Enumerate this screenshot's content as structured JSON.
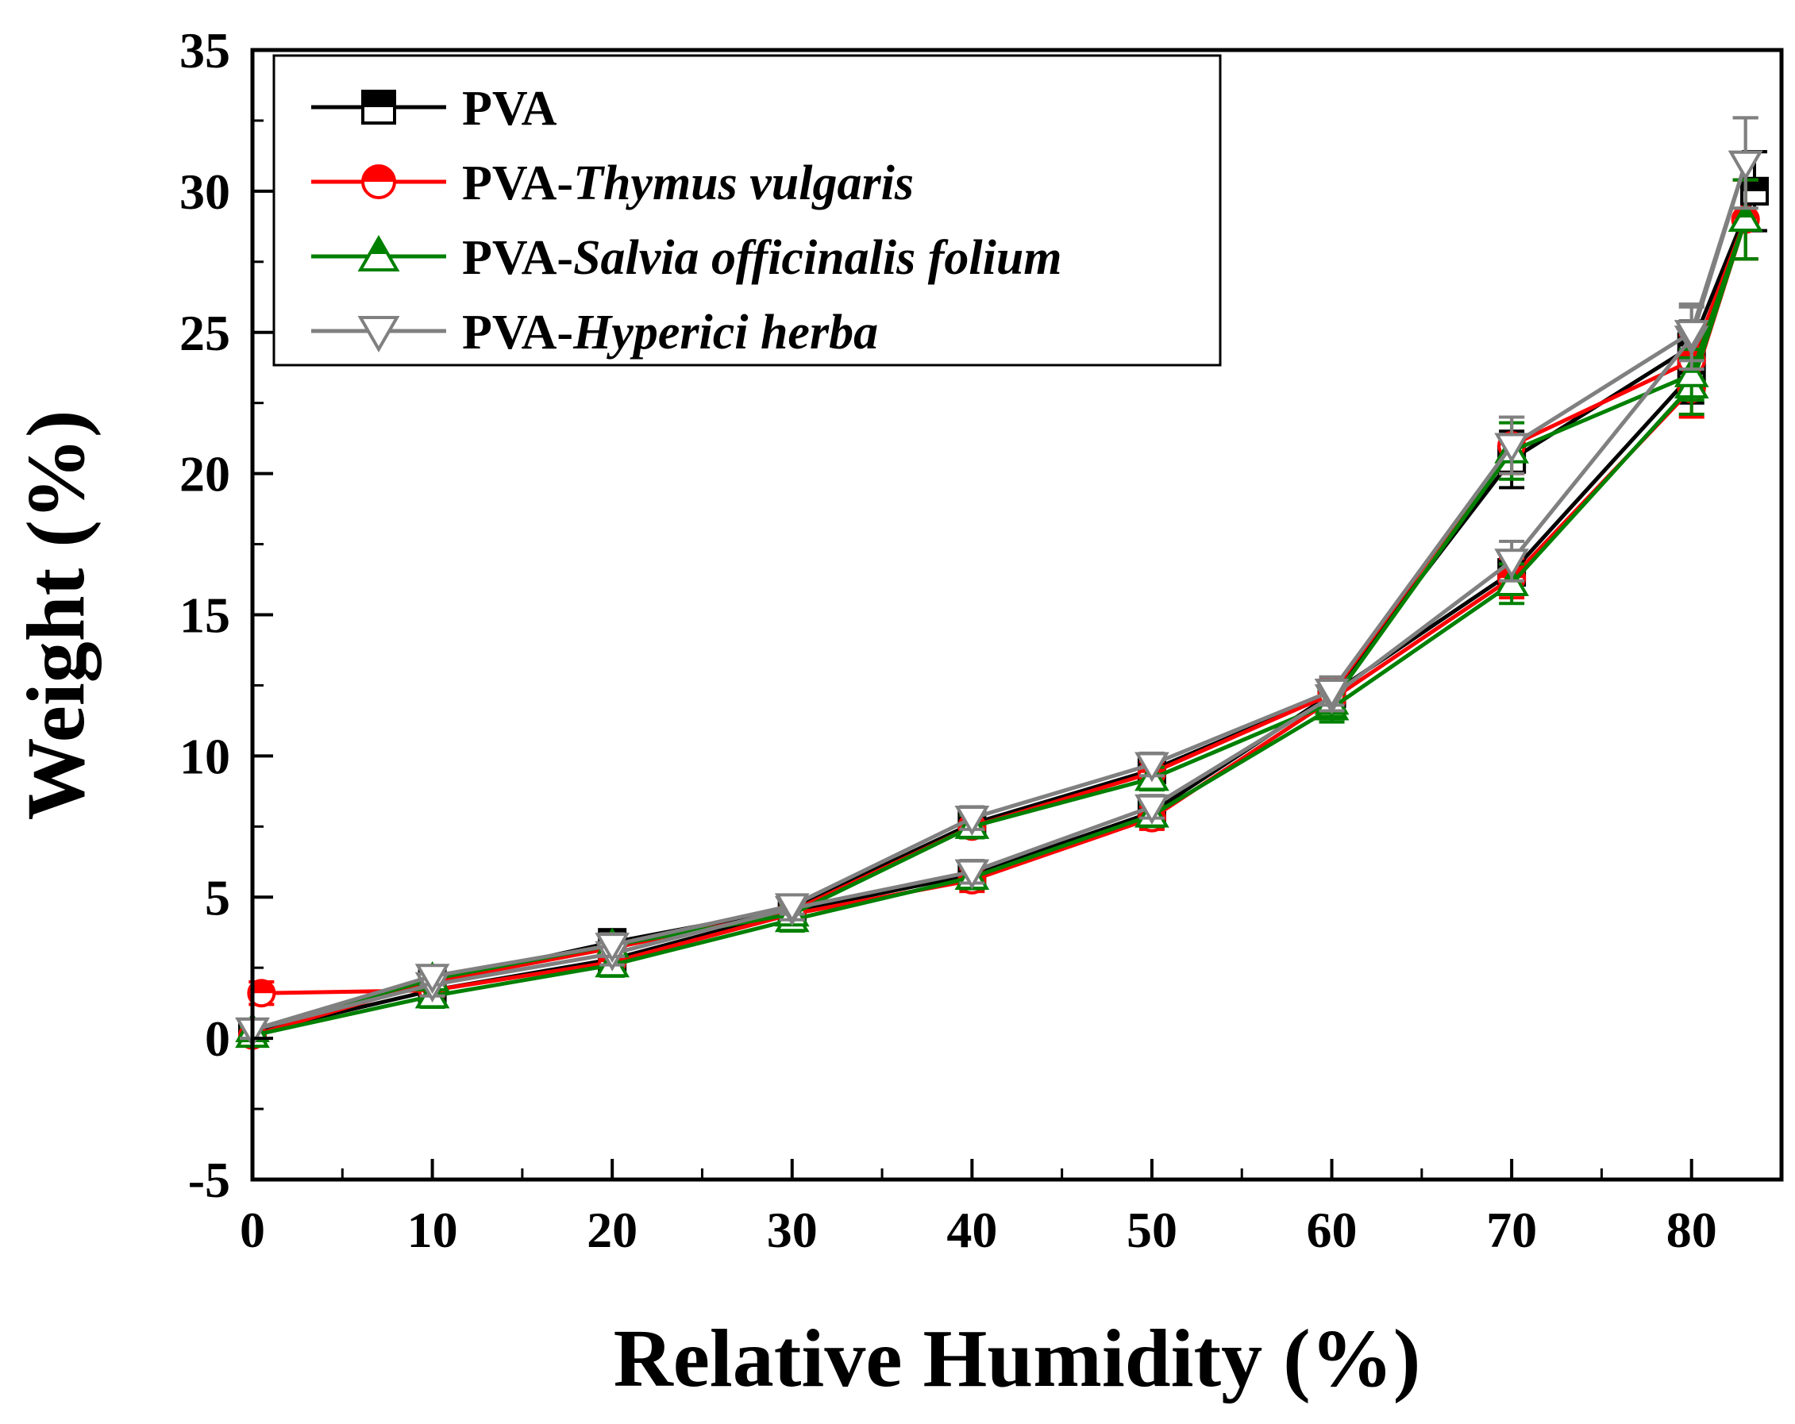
{
  "chart_data": {
    "type": "line",
    "title": "",
    "xlabel": "Relative Humidity (%)",
    "ylabel": "Weight (%)",
    "xlim": [
      0,
      85
    ],
    "ylim": [
      -5,
      35
    ],
    "xticks": [
      0,
      10,
      20,
      30,
      40,
      50,
      60,
      70,
      80
    ],
    "yticks": [
      -5,
      0,
      5,
      10,
      15,
      20,
      25,
      30,
      35
    ],
    "xtick_labels": [
      "0",
      "10",
      "20",
      "30",
      "40",
      "50",
      "60",
      "70",
      "80"
    ],
    "ytick_labels": [
      "-5",
      "0",
      "5",
      "10",
      "15",
      "20",
      "25",
      "30",
      "35"
    ],
    "grid": false,
    "legend_position": "top-left",
    "series": [
      {
        "name": "PVA",
        "name_plain": "PVA",
        "name_italic": "",
        "color": "#000000",
        "marker": "square",
        "adsorption": {
          "x": [
            0,
            10,
            20,
            30,
            40,
            50,
            60,
            70,
            80,
            83.5
          ],
          "y": [
            0.2,
            1.7,
            2.8,
            4.5,
            5.8,
            8.0,
            12.2,
            16.5,
            23.5,
            30.0
          ],
          "err": [
            0.3,
            0.4,
            0.4,
            0.4,
            0.4,
            0.4,
            0.5,
            0.7,
            1.0,
            1.4
          ]
        },
        "desorption": {
          "x": [
            83.5,
            80,
            70,
            60,
            50,
            40,
            30,
            20,
            10,
            0
          ],
          "y": [
            30.0,
            24.5,
            20.5,
            12.2,
            9.5,
            7.6,
            4.6,
            3.4,
            2.0,
            0.2
          ],
          "err": [
            1.4,
            0.9,
            1.0,
            0.5,
            0.4,
            0.4,
            0.3,
            0.4,
            0.3,
            0.3
          ]
        }
      },
      {
        "name": "PVA-Thymus vulgaris",
        "name_plain": "PVA-",
        "name_italic": "Thymus vulgaris",
        "color": "#ff0000",
        "marker": "circle",
        "adsorption": {
          "x": [
            0.5,
            10,
            20,
            30,
            40,
            50,
            60,
            70,
            80,
            83
          ],
          "y": [
            1.6,
            1.7,
            2.7,
            4.4,
            5.6,
            7.8,
            12.0,
            16.3,
            23.0,
            29.0
          ],
          "err": [
            0.4,
            0.4,
            0.4,
            0.4,
            0.4,
            0.4,
            0.5,
            0.7,
            1.0,
            1.4
          ]
        },
        "desorption": {
          "x": [
            83,
            80,
            70,
            60,
            50,
            40,
            30,
            20,
            10,
            0
          ],
          "y": [
            29.0,
            24.0,
            21.0,
            12.2,
            9.4,
            7.5,
            4.5,
            3.2,
            2.0,
            0.1
          ],
          "err": [
            1.4,
            0.9,
            1.0,
            0.5,
            0.4,
            0.4,
            0.3,
            0.4,
            0.3,
            0.3
          ]
        }
      },
      {
        "name": "PVA-Salvia officinalis folium",
        "name_plain": "PVA-",
        "name_italic": "Salvia officinalis folium",
        "color": "#008000",
        "marker": "triangle-up",
        "adsorption": {
          "x": [
            0,
            10,
            20,
            30,
            40,
            50,
            60,
            70,
            80,
            83
          ],
          "y": [
            0.1,
            1.5,
            2.6,
            4.2,
            5.7,
            7.9,
            11.7,
            16.1,
            23.1,
            29.0
          ],
          "err": [
            0.3,
            0.4,
            0.4,
            0.4,
            0.4,
            0.4,
            0.5,
            0.7,
            1.0,
            1.4
          ]
        },
        "desorption": {
          "x": [
            83,
            80,
            70,
            60,
            50,
            40,
            30,
            20,
            10,
            0
          ],
          "y": [
            29.0,
            23.5,
            20.8,
            11.9,
            9.2,
            7.5,
            4.4,
            3.3,
            2.1,
            0.3
          ],
          "err": [
            1.4,
            0.9,
            1.0,
            0.5,
            0.4,
            0.4,
            0.3,
            0.4,
            0.3,
            0.3
          ]
        }
      },
      {
        "name": "PVA-Hyperici herba",
        "name_plain": "PVA-",
        "name_italic": "Hyperici herba",
        "color": "#808080",
        "marker": "triangle-down",
        "adsorption": {
          "x": [
            0,
            10,
            20,
            30,
            40,
            50,
            60,
            70,
            80,
            83
          ],
          "y": [
            0.3,
            1.9,
            3.0,
            4.6,
            5.9,
            8.2,
            12.1,
            16.9,
            24.8,
            31.0
          ],
          "err": [
            0.3,
            0.4,
            0.4,
            0.4,
            0.4,
            0.4,
            0.5,
            0.7,
            1.1,
            1.6
          ]
        },
        "desorption": {
          "x": [
            83,
            80,
            70,
            60,
            50,
            40,
            30,
            20,
            10,
            0
          ],
          "y": [
            31.0,
            25.0,
            21.0,
            12.3,
            9.7,
            7.8,
            4.7,
            3.3,
            2.2,
            0.3
          ],
          "err": [
            1.6,
            1.0,
            1.0,
            0.5,
            0.4,
            0.4,
            0.3,
            0.4,
            0.3,
            0.3
          ]
        }
      }
    ]
  }
}
